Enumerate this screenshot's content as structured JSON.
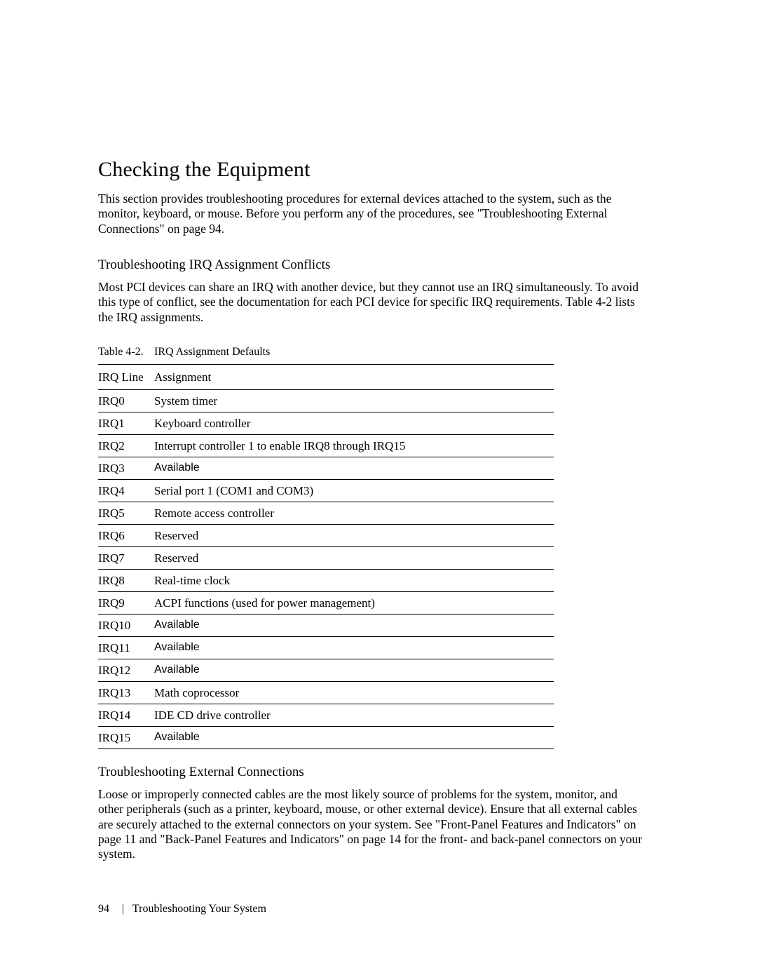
{
  "heading": "Checking the Equipment",
  "intro": "This section provides troubleshooting procedures for external devices attached to the system, such as the monitor, keyboard, or mouse. Before you perform any of the procedures, see \"Troubleshooting External Connections\" on page 94.",
  "section1": {
    "title": "Troubleshooting IRQ Assignment Conflicts",
    "text": "Most PCI devices can share an IRQ with another device, but they cannot use an IRQ simultaneously. To avoid this type of conflict, see the documentation for each PCI device for specific IRQ requirements. Table 4-2 lists the IRQ assignments."
  },
  "table": {
    "label": "Table 4-2.",
    "title": "IRQ Assignment Defaults",
    "columns": [
      "IRQ Line",
      "Assignment"
    ],
    "rows": [
      {
        "irq": "IRQ0",
        "assignment": "System timer",
        "sans": false
      },
      {
        "irq": "IRQ1",
        "assignment": "Keyboard controller",
        "sans": false
      },
      {
        "irq": "IRQ2",
        "assignment": "Interrupt controller 1 to enable IRQ8 through IRQ15",
        "sans": false
      },
      {
        "irq": "IRQ3",
        "assignment": "Available",
        "sans": true
      },
      {
        "irq": "IRQ4",
        "assignment": "Serial port 1 (COM1 and COM3)",
        "sans": false
      },
      {
        "irq": "IRQ5",
        "assignment": "Remote access controller",
        "sans": false
      },
      {
        "irq": "IRQ6",
        "assignment": "Reserved",
        "sans": false
      },
      {
        "irq": "IRQ7",
        "assignment": "Reserved",
        "sans": false
      },
      {
        "irq": "IRQ8",
        "assignment": "Real-time clock",
        "sans": false
      },
      {
        "irq": "IRQ9",
        "assignment": "ACPI functions (used for power management)",
        "sans": false
      },
      {
        "irq": "IRQ10",
        "assignment": "Available",
        "sans": true
      },
      {
        "irq": "IRQ11",
        "assignment": "Available",
        "sans": true
      },
      {
        "irq": "IRQ12",
        "assignment": "Available",
        "sans": true
      },
      {
        "irq": "IRQ13",
        "assignment": "Math coprocessor",
        "sans": false
      },
      {
        "irq": "IRQ14",
        "assignment": "IDE CD drive controller",
        "sans": false
      },
      {
        "irq": "IRQ15",
        "assignment": "Available",
        "sans": true
      }
    ]
  },
  "section2": {
    "title": "Troubleshooting External Connections",
    "text": "Loose or improperly connected cables are the most likely source of problems for the system, monitor, and other peripherals (such as a printer, keyboard, mouse, or other external device). Ensure that all external cables are securely attached to the external connectors on your system. See \"Front-Panel Features and Indicators\" on page 11 and \"Back-Panel Features and Indicators\" on page 14 for the front- and back-panel connectors on your system."
  },
  "footer": {
    "page_number": "94",
    "separator": "|",
    "chapter": "Troubleshooting Your System"
  }
}
